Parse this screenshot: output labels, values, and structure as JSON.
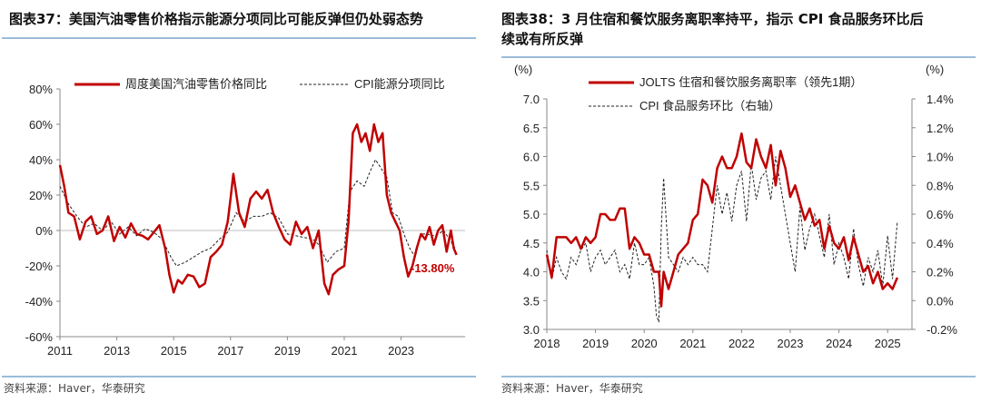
{
  "charts": [
    {
      "figure_label": "图表37：",
      "title_text": "美国汽油零售价格指示能源分项同比可能反弹但仍处弱态势",
      "source": "资料来源：Haver，华泰研究"
    },
    {
      "figure_label": "图表38：",
      "title_text": "3 月住宿和餐饮服务离职率持平，指示 CPI 食品服务环比后",
      "title_text_2": "续或有所反弹",
      "source": "资料来源：Haver，华泰研究"
    }
  ],
  "colors": {
    "red": "#c00000",
    "black": "#222222",
    "axis": "#888888"
  },
  "chart_data": [
    {
      "type": "line",
      "title": "美国汽油零售价格指示能源分项同比可能反弹但仍处弱态势",
      "x_range": [
        2011,
        2025.25
      ],
      "ylim": [
        -60,
        80
      ],
      "yticks": [
        "80%",
        "60%",
        "40%",
        "20%",
        "0%",
        "-20%",
        "-40%",
        "-60%"
      ],
      "ytick_values": [
        80,
        60,
        40,
        20,
        0,
        -20,
        -40,
        -60
      ],
      "xticks": [
        "2011",
        "2013",
        "2015",
        "2017",
        "2019",
        "2021",
        "2023"
      ],
      "xtick_values": [
        2011,
        2013,
        2015,
        2017,
        2019,
        2021,
        2023
      ],
      "legend": [
        "周度美国汽油零售价格同比",
        "CPI能源分项同比"
      ],
      "annotation": "-13.80%",
      "series": [
        {
          "name": "周度美国汽油零售价格同比",
          "style": "solid-red",
          "x": [
            2011.0,
            2011.15,
            2011.3,
            2011.5,
            2011.7,
            2011.9,
            2012.1,
            2012.3,
            2012.5,
            2012.7,
            2012.9,
            2013.1,
            2013.3,
            2013.5,
            2013.7,
            2013.9,
            2014.1,
            2014.3,
            2014.5,
            2014.7,
            2014.85,
            2015.0,
            2015.15,
            2015.3,
            2015.5,
            2015.7,
            2015.9,
            2016.1,
            2016.3,
            2016.5,
            2016.7,
            2016.9,
            2017.0,
            2017.1,
            2017.3,
            2017.5,
            2017.7,
            2017.9,
            2018.1,
            2018.3,
            2018.5,
            2018.7,
            2018.9,
            2019.1,
            2019.3,
            2019.5,
            2019.7,
            2019.9,
            2020.1,
            2020.3,
            2020.45,
            2020.6,
            2020.8,
            2021.0,
            2021.15,
            2021.3,
            2021.45,
            2021.6,
            2021.75,
            2021.9,
            2022.05,
            2022.2,
            2022.35,
            2022.5,
            2022.65,
            2022.8,
            2022.95,
            2023.1,
            2023.25,
            2023.4,
            2023.55,
            2023.7,
            2023.85,
            2024.0,
            2024.15,
            2024.3,
            2024.45,
            2024.6,
            2024.75,
            2024.85,
            2024.95
          ],
          "y": [
            37,
            25,
            10,
            8,
            -5,
            5,
            8,
            -2,
            0,
            8,
            -6,
            2,
            -4,
            4,
            -2,
            -3,
            -5,
            -1,
            3,
            -10,
            -25,
            -35,
            -28,
            -30,
            -25,
            -26,
            -32,
            -30,
            -15,
            -12,
            -8,
            5,
            18,
            32,
            10,
            2,
            18,
            22,
            18,
            23,
            10,
            2,
            -5,
            -8,
            5,
            -2,
            2,
            -10,
            0,
            -30,
            -36,
            -25,
            -22,
            -20,
            5,
            55,
            60,
            50,
            55,
            45,
            60,
            50,
            55,
            20,
            10,
            5,
            0,
            -15,
            -26,
            -20,
            -10,
            -2,
            -5,
            2,
            -8,
            0,
            3,
            -12,
            0,
            -10,
            -13.8
          ]
        },
        {
          "name": "CPI能源分项同比",
          "style": "dashed-black",
          "x": [
            2011.0,
            2011.3,
            2011.6,
            2011.9,
            2012.2,
            2012.5,
            2012.8,
            2013.1,
            2013.4,
            2013.7,
            2014.0,
            2014.3,
            2014.6,
            2014.9,
            2015.1,
            2015.4,
            2015.7,
            2016.0,
            2016.3,
            2016.6,
            2016.9,
            2017.2,
            2017.5,
            2017.8,
            2018.1,
            2018.4,
            2018.7,
            2019.0,
            2019.3,
            2019.6,
            2019.9,
            2020.1,
            2020.4,
            2020.7,
            2021.0,
            2021.2,
            2021.45,
            2021.7,
            2021.9,
            2022.1,
            2022.3,
            2022.5,
            2022.7,
            2022.9,
            2023.1,
            2023.3,
            2023.5,
            2023.7,
            2023.9,
            2024.1,
            2024.3,
            2024.5,
            2024.7,
            2024.9
          ],
          "y": [
            25,
            15,
            8,
            2,
            4,
            0,
            5,
            -2,
            2,
            -3,
            1,
            -1,
            -5,
            -15,
            -20,
            -18,
            -15,
            -12,
            -10,
            -5,
            -1,
            10,
            5,
            8,
            8,
            10,
            7,
            -2,
            -3,
            -4,
            -5,
            -8,
            -18,
            -12,
            -10,
            22,
            28,
            25,
            33,
            40,
            35,
            30,
            10,
            8,
            -2,
            -10,
            -15,
            -2,
            -2,
            -3,
            -2,
            0,
            -5,
            -10
          ]
        }
      ]
    },
    {
      "type": "line",
      "title": "3 月住宿和餐饮服务离职率持平，指示 CPI 食品服务环比后续或有所反弹",
      "x_range": [
        2018,
        2025.5
      ],
      "ylim_left": [
        3.0,
        7.0
      ],
      "ylim_right": [
        -0.2,
        1.4
      ],
      "yticks_left": [
        "7.0",
        "6.5",
        "6.0",
        "5.5",
        "5.0",
        "4.5",
        "4.0",
        "3.5",
        "3.0"
      ],
      "ytick_values_left": [
        7.0,
        6.5,
        6.0,
        5.5,
        5.0,
        4.5,
        4.0,
        3.5,
        3.0
      ],
      "yticks_right": [
        "1.4%",
        "1.2%",
        "1.0%",
        "0.8%",
        "0.6%",
        "0.4%",
        "0.2%",
        "0.0%",
        "-0.2%"
      ],
      "ytick_values_right": [
        1.4,
        1.2,
        1.0,
        0.8,
        0.6,
        0.4,
        0.2,
        0.0,
        -0.2
      ],
      "xticks": [
        "2018",
        "2019",
        "2020",
        "2021",
        "2022",
        "2023",
        "2024",
        "2025"
      ],
      "xtick_values": [
        2018,
        2019,
        2020,
        2021,
        2022,
        2023,
        2024,
        2025
      ],
      "ylabel_left": "(%)",
      "ylabel_right": "(%)",
      "legend": [
        "JOLTS 住宿和餐饮服务离职率（领先1期）",
        "CPI 食品服务环比（右轴）"
      ],
      "series": [
        {
          "name": "JOLTS 住宿和餐饮服务离职率（领先1期）",
          "axis": "left",
          "style": "solid-red",
          "x": [
            2018.0,
            2018.1,
            2018.2,
            2018.3,
            2018.4,
            2018.5,
            2018.6,
            2018.7,
            2018.8,
            2018.9,
            2019.0,
            2019.1,
            2019.2,
            2019.3,
            2019.4,
            2019.5,
            2019.6,
            2019.7,
            2019.8,
            2019.9,
            2020.0,
            2020.1,
            2020.2,
            2020.3,
            2020.35,
            2020.4,
            2020.5,
            2020.6,
            2020.7,
            2020.8,
            2020.9,
            2021.0,
            2021.1,
            2021.2,
            2021.3,
            2021.4,
            2021.5,
            2021.6,
            2021.7,
            2021.8,
            2021.9,
            2022.0,
            2022.1,
            2022.2,
            2022.3,
            2022.4,
            2022.5,
            2022.6,
            2022.7,
            2022.8,
            2022.9,
            2023.0,
            2023.1,
            2023.2,
            2023.3,
            2023.4,
            2023.5,
            2023.6,
            2023.7,
            2023.8,
            2023.9,
            2024.0,
            2024.1,
            2024.2,
            2024.3,
            2024.4,
            2024.5,
            2024.6,
            2024.7,
            2024.8,
            2024.9,
            2025.0,
            2025.1,
            2025.2
          ],
          "y": [
            4.3,
            3.9,
            4.6,
            4.6,
            4.6,
            4.5,
            4.6,
            4.4,
            4.6,
            4.5,
            4.6,
            5.0,
            5.0,
            4.9,
            4.9,
            5.1,
            5.1,
            4.4,
            4.6,
            4.5,
            4.3,
            4.3,
            4.0,
            4.0,
            3.4,
            4.0,
            3.7,
            4.0,
            4.3,
            4.4,
            4.5,
            4.9,
            5.0,
            5.6,
            5.5,
            5.2,
            5.8,
            6.0,
            5.8,
            5.8,
            6.0,
            6.4,
            5.9,
            5.8,
            6.3,
            6.0,
            5.8,
            6.2,
            5.5,
            6.1,
            5.8,
            5.3,
            5.5,
            5.2,
            4.9,
            5.1,
            4.8,
            4.9,
            4.4,
            4.8,
            4.5,
            4.4,
            4.6,
            4.2,
            4.6,
            4.3,
            4.0,
            4.1,
            3.8,
            4.0,
            3.7,
            3.8,
            3.7,
            3.9
          ]
        },
        {
          "name": "CPI 食品服务环比（右轴）",
          "axis": "right",
          "style": "dashed-black",
          "x": [
            2018.0,
            2018.1,
            2018.2,
            2018.3,
            2018.4,
            2018.5,
            2018.6,
            2018.7,
            2018.8,
            2018.9,
            2019.0,
            2019.1,
            2019.2,
            2019.3,
            2019.4,
            2019.5,
            2019.6,
            2019.7,
            2019.8,
            2019.9,
            2020.0,
            2020.1,
            2020.2,
            2020.25,
            2020.3,
            2020.35,
            2020.4,
            2020.5,
            2020.6,
            2020.7,
            2020.8,
            2020.9,
            2021.0,
            2021.1,
            2021.2,
            2021.3,
            2021.4,
            2021.5,
            2021.6,
            2021.7,
            2021.8,
            2021.9,
            2022.0,
            2022.1,
            2022.2,
            2022.3,
            2022.4,
            2022.5,
            2022.6,
            2022.7,
            2022.8,
            2022.9,
            2023.0,
            2023.1,
            2023.2,
            2023.3,
            2023.4,
            2023.5,
            2023.6,
            2023.7,
            2023.8,
            2023.9,
            2024.0,
            2024.1,
            2024.2,
            2024.3,
            2024.4,
            2024.5,
            2024.6,
            2024.7,
            2024.8,
            2024.9,
            2025.0,
            2025.1,
            2025.2
          ],
          "y": [
            0.35,
            0.15,
            0.3,
            0.2,
            0.15,
            0.3,
            0.25,
            0.35,
            0.4,
            0.2,
            0.3,
            0.35,
            0.25,
            0.3,
            0.35,
            0.2,
            0.25,
            0.15,
            0.4,
            0.25,
            0.25,
            0.3,
            0.1,
            -0.1,
            -0.15,
            0.5,
            0.85,
            0.3,
            0.25,
            0.2,
            0.3,
            0.25,
            0.3,
            0.25,
            0.25,
            0.2,
            0.5,
            0.8,
            0.6,
            0.75,
            0.55,
            0.8,
            0.9,
            0.55,
            0.95,
            0.7,
            0.85,
            0.9,
            0.7,
            1.0,
            0.8,
            0.6,
            0.4,
            0.2,
            0.65,
            0.35,
            0.5,
            0.6,
            0.45,
            0.3,
            0.6,
            0.25,
            0.4,
            0.3,
            0.15,
            0.5,
            0.25,
            0.1,
            0.3,
            0.2,
            0.35,
            0.1,
            0.45,
            0.15,
            0.55
          ]
        }
      ]
    }
  ]
}
